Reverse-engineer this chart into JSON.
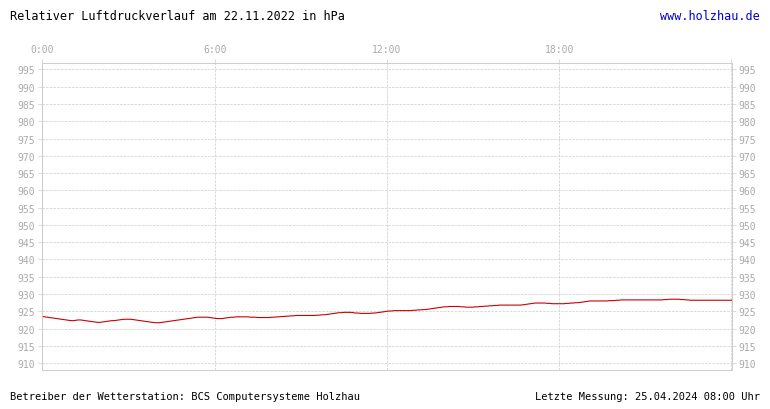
{
  "title": "Relativer Luftdruckverlauf am 22.11.2022 in hPa",
  "url_text": "www.holzhau.de",
  "footer_left": "Betreiber der Wetterstation: BCS Computersysteme Holzhau",
  "footer_right": "Letzte Messung: 25.04.2024 08:00 Uhr",
  "ylim": [
    908,
    997
  ],
  "xlim": [
    0,
    288
  ],
  "xtick_positions": [
    0,
    72,
    144,
    216,
    288
  ],
  "xtick_labels": [
    "0:00",
    "6:00",
    "12:00",
    "18:00",
    ""
  ],
  "yticks": [
    910,
    915,
    920,
    925,
    930,
    935,
    940,
    945,
    950,
    955,
    960,
    965,
    970,
    975,
    980,
    985,
    990,
    995
  ],
  "background_color": "#ffffff",
  "grid_color": "#cccccc",
  "line_color": "#cc0000",
  "title_color": "#000000",
  "url_color": "#0000cc",
  "footer_color": "#000000",
  "tick_label_color": "#aaaaaa",
  "pressure_data": [
    923.5,
    923.4,
    923.3,
    923.2,
    923.1,
    923.0,
    922.9,
    922.8,
    922.7,
    922.6,
    922.5,
    922.4,
    922.3,
    922.3,
    922.4,
    922.5,
    922.5,
    922.4,
    922.3,
    922.2,
    922.1,
    922.0,
    921.9,
    921.8,
    921.8,
    921.9,
    922.0,
    922.1,
    922.2,
    922.3,
    922.3,
    922.4,
    922.5,
    922.6,
    922.7,
    922.7,
    922.7,
    922.7,
    922.6,
    922.5,
    922.4,
    922.3,
    922.2,
    922.1,
    922.0,
    921.9,
    921.8,
    921.7,
    921.7,
    921.7,
    921.8,
    921.9,
    922.0,
    922.1,
    922.2,
    922.3,
    922.4,
    922.5,
    922.6,
    922.7,
    922.8,
    922.9,
    923.0,
    923.1,
    923.2,
    923.3,
    923.3,
    923.3,
    923.3,
    923.3,
    923.2,
    923.1,
    923.0,
    922.9,
    922.9,
    922.9,
    923.0,
    923.1,
    923.2,
    923.3,
    923.3,
    923.4,
    923.4,
    923.4,
    923.4,
    923.4,
    923.4,
    923.3,
    923.3,
    923.3,
    923.2,
    923.2,
    923.2,
    923.2,
    923.2,
    923.2,
    923.3,
    923.3,
    923.4,
    923.4,
    923.5,
    923.5,
    923.6,
    923.6,
    923.7,
    923.7,
    923.8,
    923.8,
    923.8,
    923.8,
    923.8,
    923.8,
    923.8,
    923.8,
    923.8,
    923.9,
    923.9,
    924.0,
    924.0,
    924.1,
    924.2,
    924.3,
    924.4,
    924.5,
    924.6,
    924.6,
    924.7,
    924.7,
    924.7,
    924.7,
    924.6,
    924.5,
    924.5,
    924.4,
    924.4,
    924.4,
    924.4,
    924.4,
    924.5,
    924.5,
    924.6,
    924.7,
    924.8,
    924.9,
    925.0,
    925.1,
    925.1,
    925.2,
    925.2,
    925.2,
    925.2,
    925.2,
    925.2,
    925.2,
    925.2,
    925.3,
    925.3,
    925.4,
    925.4,
    925.5,
    925.5,
    925.6,
    925.7,
    925.8,
    925.9,
    926.0,
    926.1,
    926.2,
    926.3,
    926.3,
    926.4,
    926.4,
    926.4,
    926.4,
    926.4,
    926.3,
    926.3,
    926.2,
    926.2,
    926.2,
    926.2,
    926.3,
    926.3,
    926.4,
    926.4,
    926.5,
    926.5,
    926.6,
    926.6,
    926.7,
    926.7,
    926.8,
    926.8,
    926.8,
    926.8,
    926.8,
    926.8,
    926.8,
    926.8,
    926.8,
    926.8,
    926.9,
    927.0,
    927.1,
    927.2,
    927.3,
    927.4,
    927.4,
    927.4,
    927.4,
    927.4,
    927.3,
    927.3,
    927.2,
    927.2,
    927.2,
    927.2,
    927.2,
    927.2,
    927.3,
    927.3,
    927.4,
    927.4,
    927.5,
    927.5,
    927.6,
    927.7,
    927.8,
    927.9,
    928.0,
    928.0,
    928.0,
    928.0,
    928.0,
    928.0,
    928.0,
    928.0,
    928.1,
    928.1,
    928.1,
    928.2,
    928.2,
    928.3,
    928.3,
    928.3,
    928.3,
    928.3,
    928.3,
    928.3,
    928.3,
    928.3,
    928.3,
    928.3,
    928.3,
    928.3,
    928.3,
    928.3,
    928.3,
    928.3,
    928.3,
    928.4,
    928.4,
    928.5,
    928.5,
    928.5,
    928.5,
    928.5,
    928.4,
    928.4,
    928.3,
    928.3,
    928.2,
    928.2,
    928.2,
    928.2,
    928.2,
    928.2,
    928.2,
    928.2,
    928.2,
    928.2,
    928.2,
    928.2,
    928.2,
    928.2,
    928.2,
    928.2,
    928.2,
    928.2,
    928.2
  ]
}
